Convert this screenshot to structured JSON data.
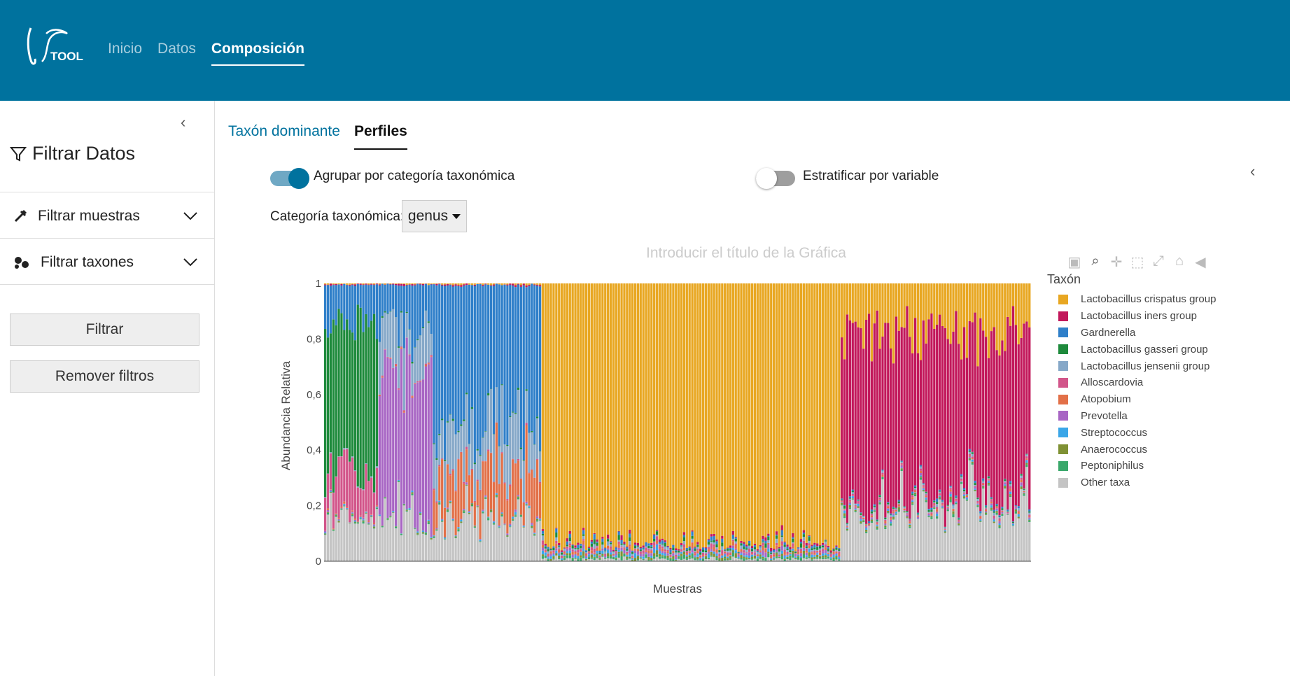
{
  "brand": {
    "logo_text": "TOOL"
  },
  "nav": {
    "items": [
      {
        "label": "Inicio"
      },
      {
        "label": "Datos"
      },
      {
        "label": "Composición"
      }
    ]
  },
  "sidebar": {
    "title": "Filtrar Datos",
    "filter_samples": "Filtrar muestras",
    "filter_taxa": "Filtrar taxones",
    "filter_button": "Filtrar",
    "remove_button": "Remover filtros"
  },
  "tabs": [
    {
      "label": "Taxón dominante"
    },
    {
      "label": "Perfiles"
    }
  ],
  "controls": {
    "group_toggle_label": "Agrupar por categoría taxonómica",
    "group_toggle_on": true,
    "stratify_toggle_label": "Estratificar por variable",
    "stratify_toggle_on": false,
    "category_label": "Categoría taxonómica:",
    "category_value": "genus"
  },
  "colors": {
    "header": "#00729e",
    "accent": "#00729e"
  },
  "chart_data": {
    "type": "bar",
    "stacked": true,
    "title": "Introducir el título de la Gráfica",
    "xlabel": "Muestras",
    "ylabel": "Abundancia Relativa",
    "ylim": [
      0,
      1
    ],
    "yticks": [
      "0",
      "0,2",
      "0,4",
      "0,6",
      "0,8",
      "1"
    ],
    "legend_title": "Taxón",
    "legend_position": "right",
    "sample_count": 260,
    "series": [
      {
        "name": "Lactobacillus crispatus group",
        "color": "#e8a722"
      },
      {
        "name": "Lactobacillus iners group",
        "color": "#c2185b"
      },
      {
        "name": "Gardnerella",
        "color": "#2f7fc9"
      },
      {
        "name": "Lactobacillus gasseri group",
        "color": "#1e8a3c"
      },
      {
        "name": "Lactobacillus jensenii group",
        "color": "#86a8c8"
      },
      {
        "name": "Alloscardovia",
        "color": "#d2558a"
      },
      {
        "name": "Atopobium",
        "color": "#e27048"
      },
      {
        "name": "Prevotella",
        "color": "#a866c4"
      },
      {
        "name": "Streptococcus",
        "color": "#3aa6e8"
      },
      {
        "name": "Anaerococcus",
        "color": "#7f9134"
      },
      {
        "name": "Peptoniphilus",
        "color": "#3aa86b"
      },
      {
        "name": "Other taxa",
        "color": "#c4c4c4"
      }
    ],
    "segments": [
      {
        "from": 0,
        "to": 20,
        "dominant": [
          "Lactobacillus gasseri group",
          "Other taxa",
          "Gardnerella",
          "Alloscardovia"
        ]
      },
      {
        "from": 20,
        "to": 40,
        "dominant": [
          "Prevotella",
          "Other taxa",
          "Gardnerella",
          "Lactobacillus jensenii group"
        ]
      },
      {
        "from": 40,
        "to": 80,
        "dominant": [
          "Gardnerella",
          "Lactobacillus jensenii group",
          "Other taxa",
          "Atopobium"
        ]
      },
      {
        "from": 80,
        "to": 190,
        "dominant": [
          "Lactobacillus crispatus group"
        ]
      },
      {
        "from": 190,
        "to": 260,
        "dominant": [
          "Lactobacillus iners group",
          "Other taxa",
          "Lactobacillus crispatus group"
        ]
      }
    ]
  }
}
